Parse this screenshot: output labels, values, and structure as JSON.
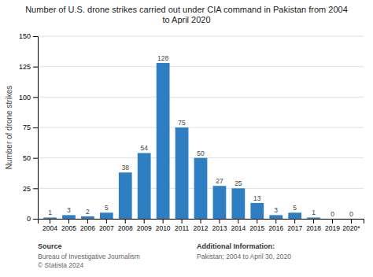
{
  "chart_data": {
    "type": "bar",
    "title": "Number of U.S. drone strikes carried out under CIA command in Pakistan from 2004\nto April 2020",
    "categories": [
      "2004",
      "2005",
      "2006",
      "2007",
      "2008",
      "2009",
      "2010",
      "2011",
      "2012",
      "2013",
      "2014",
      "2015",
      "2016",
      "2017",
      "2018",
      "2019",
      "2020*"
    ],
    "values": [
      1,
      3,
      2,
      5,
      38,
      54,
      128,
      75,
      50,
      27,
      25,
      13,
      3,
      5,
      1,
      0,
      0
    ],
    "color": "#2d7fc1",
    "ylabel": "Number of drone strikes",
    "ylim": [
      0,
      150
    ],
    "yticks": [
      0,
      25,
      50,
      75,
      100,
      125,
      150
    ],
    "grid": true,
    "data_labels": true,
    "annotations": [
      "Source",
      "Bureau of Investigative Journalism\n© Statista 2024",
      "Additional Information:",
      "Pakistan; 2004 to April 30, 2020"
    ]
  }
}
